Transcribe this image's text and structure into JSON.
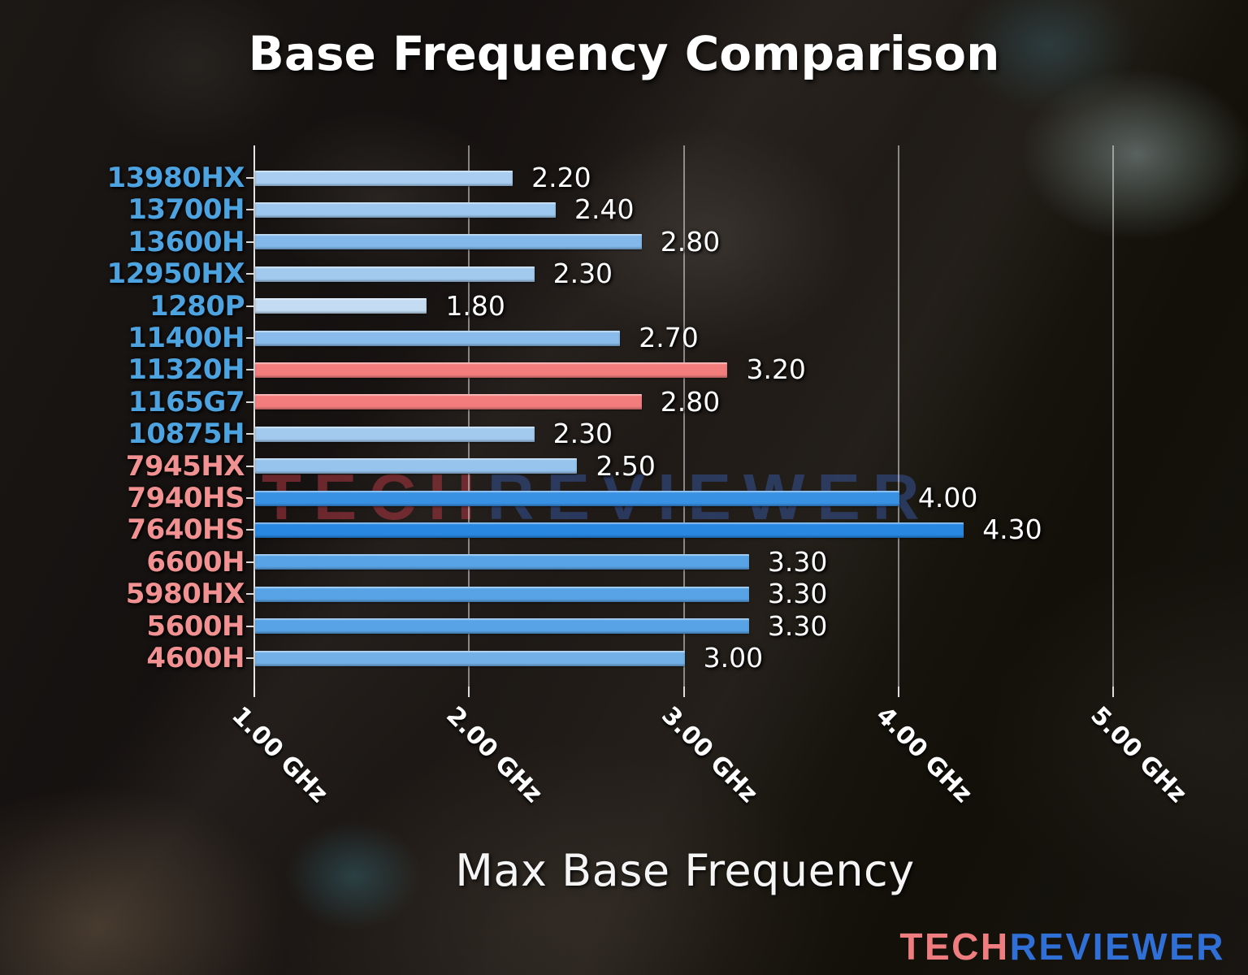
{
  "title": "Base Frequency Comparison",
  "xlabel": "Max Base Frequency",
  "watermark": {
    "part1": "TECH",
    "part2": "REVIEWER"
  },
  "logo": {
    "part1": "TECH",
    "part2": "REVIEWER",
    "part1_color": "#ef7d80",
    "part2_color": "#2f6fd6"
  },
  "colors": {
    "intel_label": "#4da3e0",
    "amd_label": "#f29191",
    "highlight_bar": "#f37d7d",
    "axis_line": "#eeeeee",
    "gridline": "#e1e1e1",
    "value_text": "#ffffff"
  },
  "chart_data": {
    "type": "bar",
    "orientation": "horizontal",
    "title": "Base Frequency Comparison",
    "xlabel": "Max Base Frequency",
    "unit": "GHz",
    "xlim": [
      1.0,
      5.46
    ],
    "grid": true,
    "xtick_values": [
      1.0,
      2.0,
      3.0,
      4.0,
      5.0
    ],
    "xtick_labels": [
      "1.00 GHz",
      "2.00 GHz",
      "3.00 GHz",
      "4.00 GHz",
      "5.00 GHz"
    ],
    "categories": [
      "13980HX",
      "13700H",
      "13600H",
      "12950HX",
      "1280P",
      "11400H",
      "11320H",
      "1165G7",
      "10875H",
      "7945HX",
      "7940HS",
      "7640HS",
      "6600H",
      "5980HX",
      "5600H",
      "4600H"
    ],
    "values": [
      2.2,
      2.4,
      2.8,
      2.3,
      1.8,
      2.7,
      3.2,
      2.8,
      2.3,
      2.5,
      4.0,
      4.3,
      3.3,
      3.3,
      3.3,
      3.0
    ],
    "bars": [
      {
        "label": "13980HX",
        "value": 2.2,
        "display": "2.20",
        "bar_color": "#a8cdf0",
        "label_color": "#4da3e0",
        "brand": "intel"
      },
      {
        "label": "13700H",
        "value": 2.4,
        "display": "2.40",
        "bar_color": "#9cc7ee",
        "label_color": "#4da3e0",
        "brand": "intel"
      },
      {
        "label": "13600H",
        "value": 2.8,
        "display": "2.80",
        "bar_color": "#83b9ea",
        "label_color": "#4da3e0",
        "brand": "intel"
      },
      {
        "label": "12950HX",
        "value": 2.3,
        "display": "2.30",
        "bar_color": "#a2caef",
        "label_color": "#4da3e0",
        "brand": "intel"
      },
      {
        "label": "1280P",
        "value": 1.8,
        "display": "1.80",
        "bar_color": "#c3dcf3",
        "label_color": "#4da3e0",
        "brand": "intel"
      },
      {
        "label": "11400H",
        "value": 2.7,
        "display": "2.70",
        "bar_color": "#89bceb",
        "label_color": "#4da3e0",
        "brand": "intel"
      },
      {
        "label": "11320H",
        "value": 3.2,
        "display": "3.20",
        "bar_color": "#f37d7d",
        "label_color": "#4da3e0",
        "brand": "intel"
      },
      {
        "label": "1165G7",
        "value": 2.8,
        "display": "2.80",
        "bar_color": "#f37d7d",
        "label_color": "#4da3e0",
        "brand": "intel"
      },
      {
        "label": "10875H",
        "value": 2.3,
        "display": "2.30",
        "bar_color": "#a2caef",
        "label_color": "#4da3e0",
        "brand": "intel"
      },
      {
        "label": "7945HX",
        "value": 2.5,
        "display": "2.50",
        "bar_color": "#97c4ed",
        "label_color": "#f29191",
        "brand": "amd"
      },
      {
        "label": "7940HS",
        "value": 4.0,
        "display": "4.00",
        "bar_color": "#3991e3",
        "label_color": "#f29191",
        "brand": "amd"
      },
      {
        "label": "7640HS",
        "value": 4.3,
        "display": "4.30",
        "bar_color": "#2787e1",
        "label_color": "#f29191",
        "brand": "amd"
      },
      {
        "label": "6600H",
        "value": 3.3,
        "display": "3.30",
        "bar_color": "#58a3e6",
        "label_color": "#f29191",
        "brand": "amd"
      },
      {
        "label": "5980HX",
        "value": 3.3,
        "display": "3.30",
        "bar_color": "#58a3e6",
        "label_color": "#f29191",
        "brand": "amd"
      },
      {
        "label": "5600H",
        "value": 3.3,
        "display": "3.30",
        "bar_color": "#58a3e6",
        "label_color": "#f29191",
        "brand": "amd"
      },
      {
        "label": "4600H",
        "value": 3.0,
        "display": "3.00",
        "bar_color": "#73b0e8",
        "label_color": "#f29191",
        "brand": "amd"
      }
    ]
  }
}
